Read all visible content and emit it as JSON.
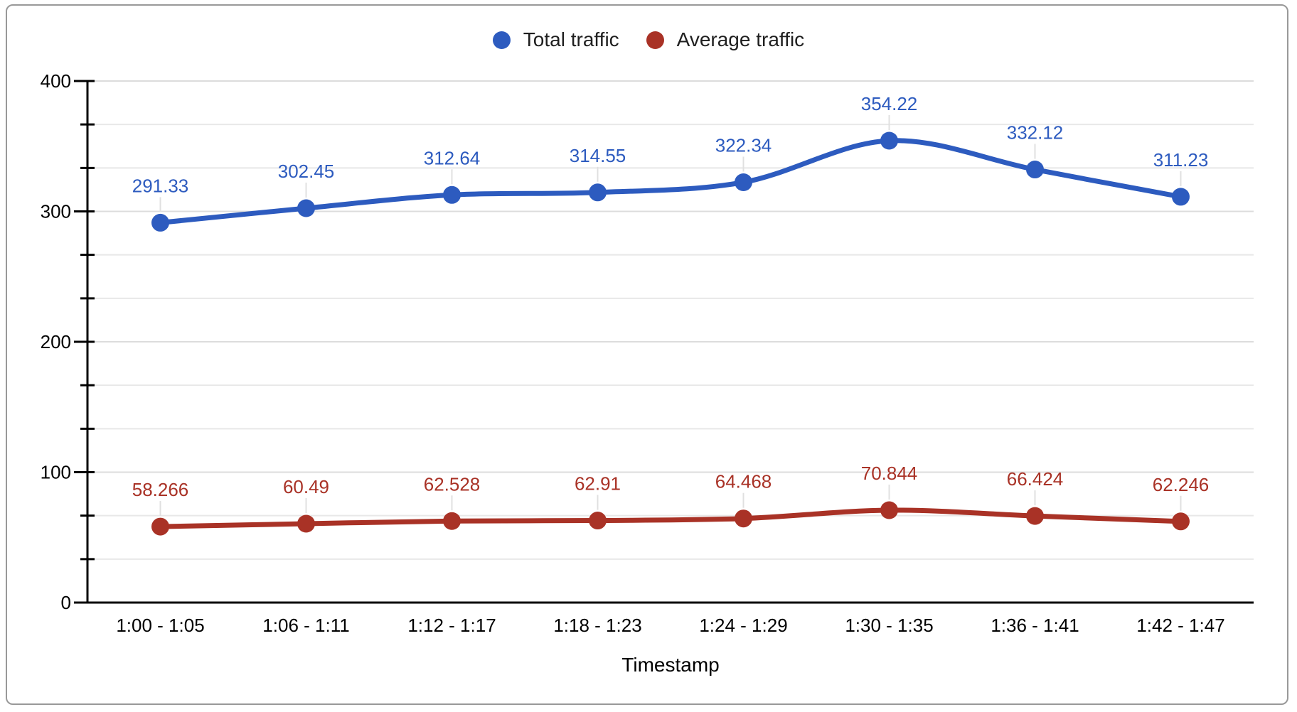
{
  "chart_data": {
    "type": "line",
    "smooth": true,
    "title": "",
    "xlabel": "Timestamp",
    "ylabel": "",
    "categories": [
      "1:00 - 1:05",
      "1:06 - 1:11",
      "1:12 - 1:17",
      "1:18 - 1:23",
      "1:24 - 1:29",
      "1:30 - 1:35",
      "1:36 - 1:41",
      "1:42 - 1:47"
    ],
    "series": [
      {
        "name": "Total traffic",
        "color": "#2D5BBF",
        "values": [
          291.33,
          302.45,
          312.64,
          314.55,
          322.34,
          354.22,
          332.12,
          311.23
        ]
      },
      {
        "name": "Average traffic",
        "color": "#A93226",
        "values": [
          58.266,
          60.49,
          62.528,
          62.91,
          64.468,
          70.844,
          66.424,
          62.246
        ]
      }
    ],
    "ylim": [
      0,
      400
    ],
    "y_major_ticks": [
      0,
      100,
      200,
      300,
      400
    ],
    "y_minor_per_major": 3,
    "grid": true,
    "legend_position": "top",
    "data_labels_shown": true
  },
  "colors": {
    "background": "#ffffff",
    "frame_border": "#999999",
    "grid_major": "#dcdcdc",
    "grid_minor": "#e8e8e8",
    "axis": "#000000",
    "tick_label": "#000000",
    "legend_text": "#1f1f1f",
    "label_leader": "#e0e0e0"
  }
}
